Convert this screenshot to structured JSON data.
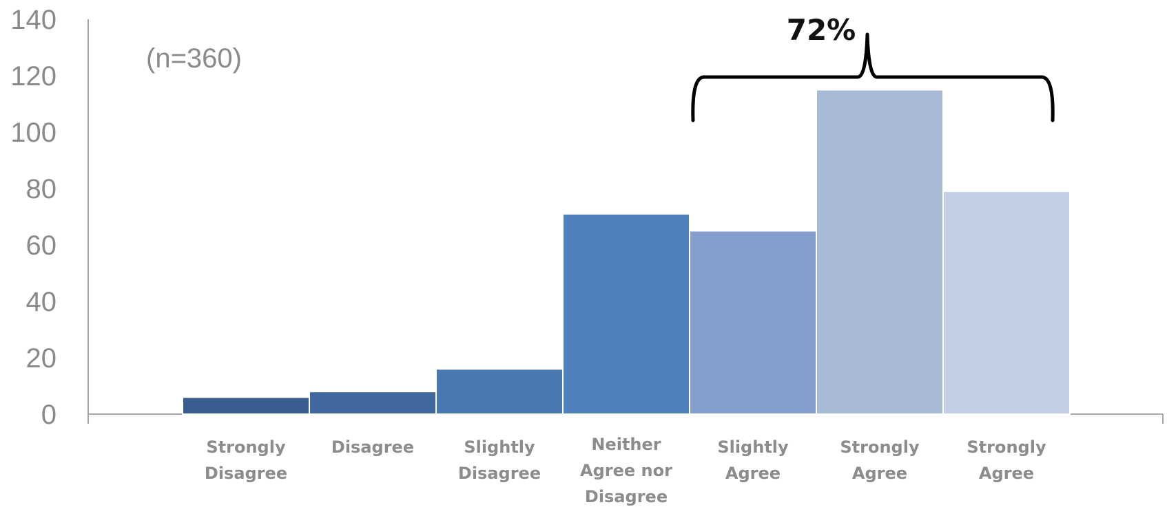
{
  "chart_data": {
    "type": "bar",
    "categories": [
      [
        "Strongly",
        "Disagree"
      ],
      [
        "Disagree"
      ],
      [
        "Slightly",
        "Disagree"
      ],
      [
        "Neither",
        "Agree nor",
        "Disagree"
      ],
      [
        "Slightly",
        "Agree"
      ],
      [
        "Strongly",
        "Agree"
      ],
      [
        "Strongly",
        "Agree"
      ]
    ],
    "values": [
      6,
      8,
      16,
      71,
      65,
      115,
      79
    ],
    "colors": [
      "#3a5d8f",
      "#40689e",
      "#4a78b0",
      "#4f81bd",
      "#849fcb",
      "#a8b9d8",
      "#c3cfe3"
    ],
    "ylim": [
      0,
      140
    ],
    "yticks": [
      0,
      20,
      40,
      60,
      80,
      100,
      120,
      140
    ],
    "title": "",
    "xlabel": "",
    "ylabel": "",
    "grid": false,
    "annotations": {
      "sample": "(n=360)",
      "bracket_label": "72%",
      "bracket_span": [
        4,
        6
      ]
    }
  }
}
